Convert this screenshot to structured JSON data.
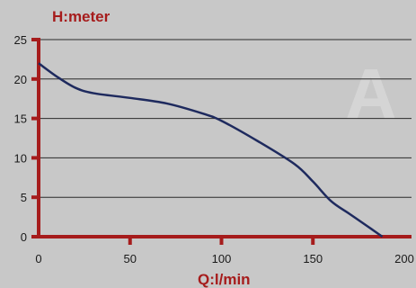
{
  "colors": {
    "background": "#c8c8c8",
    "axis": "#a61c1c",
    "grid": "#2a2a2a",
    "curve": "#1e2a5e",
    "axis_title": "#a61c1c",
    "tick_label": "#1a1a1a"
  },
  "chart_data": {
    "type": "line",
    "xlabel": "Q:l/min",
    "ylabel": "H:meter",
    "xlim": [
      0,
      200
    ],
    "ylim": [
      0,
      25
    ],
    "x_ticks": [
      "0",
      "50",
      "100",
      "150",
      "200"
    ],
    "y_ticks": [
      "0",
      "5",
      "10",
      "15",
      "20",
      "25"
    ],
    "grid": "horizontal",
    "watermark": "A",
    "series": [
      {
        "x": [
          0,
          10,
          20,
          30,
          50,
          70,
          90,
          100,
          120,
          140,
          150,
          160,
          170,
          180,
          188
        ],
        "values": [
          22,
          20.3,
          18.9,
          18.2,
          17.6,
          16.9,
          15.6,
          14.7,
          12.1,
          9.2,
          7.0,
          4.5,
          2.9,
          1.3,
          0
        ]
      }
    ]
  }
}
